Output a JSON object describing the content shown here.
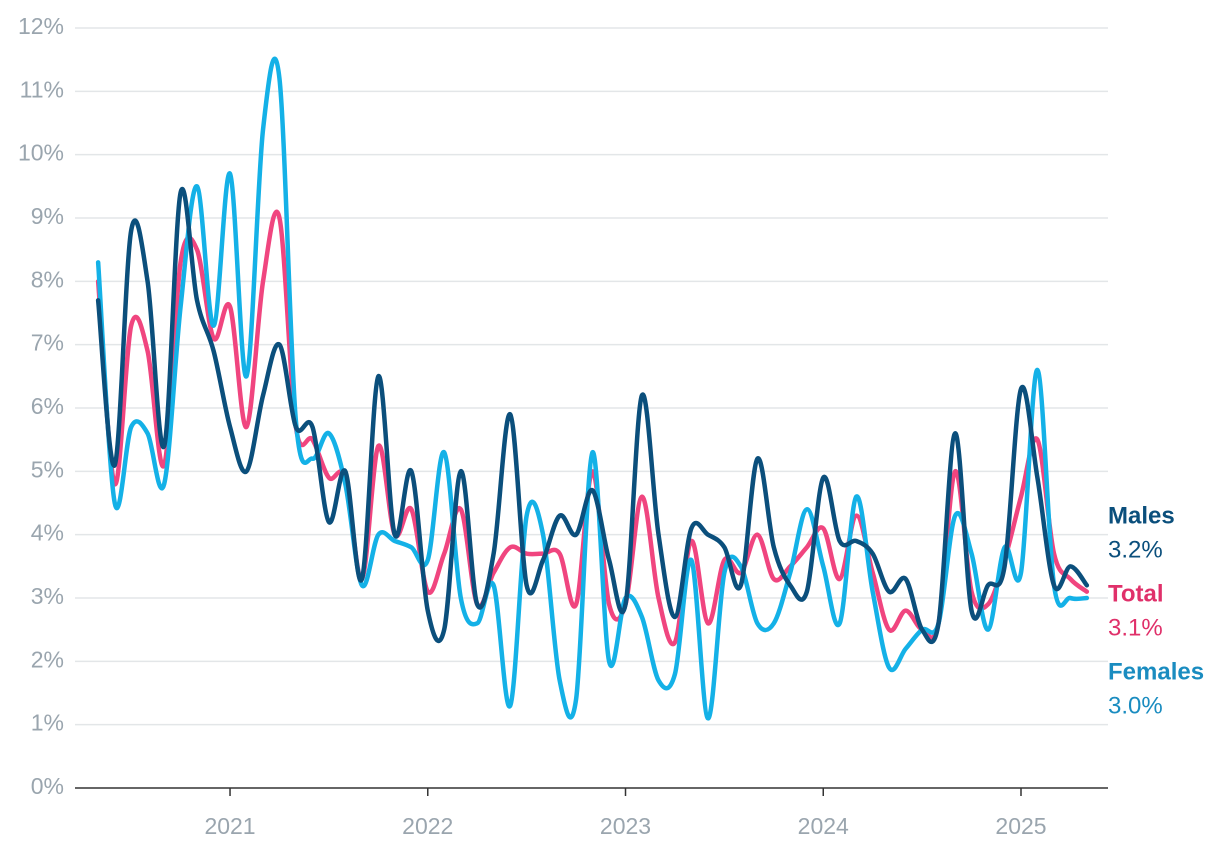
{
  "chart_data": {
    "type": "line",
    "x": [
      2020.333,
      2020.417,
      2020.5,
      2020.583,
      2020.667,
      2020.75,
      2020.833,
      2020.917,
      2021,
      2021.083,
      2021.167,
      2021.25,
      2021.333,
      2021.417,
      2021.5,
      2021.583,
      2021.667,
      2021.75,
      2021.833,
      2021.917,
      2022,
      2022.083,
      2022.167,
      2022.25,
      2022.333,
      2022.417,
      2022.5,
      2022.583,
      2022.667,
      2022.75,
      2022.833,
      2022.917,
      2023,
      2023.083,
      2023.167,
      2023.25,
      2023.333,
      2023.417,
      2023.5,
      2023.583,
      2023.667,
      2023.75,
      2023.833,
      2023.917,
      2024,
      2024.083,
      2024.167,
      2024.25,
      2024.333,
      2024.417,
      2024.5,
      2024.583,
      2024.667,
      2024.75,
      2024.833,
      2024.917,
      2025,
      2025.083,
      2025.167,
      2025.25,
      2025.333
    ],
    "series": [
      {
        "name": "Total",
        "color": "#f0457f",
        "label_color": "#e0306a",
        "end_label": "3.1%",
        "values": [
          8.0,
          4.8,
          7.3,
          6.9,
          5.1,
          8.3,
          8.5,
          7.1,
          7.6,
          5.7,
          8.0,
          9.0,
          5.7,
          5.5,
          4.9,
          4.9,
          3.3,
          5.4,
          4.0,
          4.4,
          3.1,
          3.7,
          4.4,
          2.9,
          3.4,
          3.8,
          3.7,
          3.7,
          3.7,
          2.9,
          5.0,
          2.9,
          2.9,
          4.6,
          3.0,
          2.3,
          3.9,
          2.6,
          3.6,
          3.4,
          4.0,
          3.3,
          3.5,
          3.8,
          4.1,
          3.3,
          4.3,
          3.4,
          2.5,
          2.8,
          2.5,
          2.6,
          5.0,
          3.1,
          2.9,
          3.6,
          4.6,
          5.5,
          3.7,
          3.3,
          3.1
        ]
      },
      {
        "name": "Females",
        "color": "#14b1e7",
        "label_color": "#1a8cc0",
        "end_label": "3.0%",
        "values": [
          8.3,
          4.5,
          5.7,
          5.6,
          4.8,
          7.6,
          9.5,
          7.3,
          9.7,
          6.5,
          10.4,
          11.2,
          5.8,
          5.2,
          5.6,
          4.8,
          3.2,
          4.0,
          3.9,
          3.8,
          3.6,
          5.3,
          3.0,
          2.6,
          3.2,
          1.3,
          4.3,
          4.0,
          1.7,
          1.4,
          5.3,
          2.0,
          3.0,
          2.7,
          1.7,
          1.8,
          3.6,
          1.1,
          3.4,
          3.5,
          2.6,
          2.6,
          3.4,
          4.4,
          3.5,
          2.6,
          4.6,
          3.1,
          1.9,
          2.2,
          2.5,
          2.6,
          4.3,
          3.7,
          2.5,
          3.8,
          3.4,
          6.6,
          3.2,
          3.0,
          3.0
        ]
      },
      {
        "name": "Males",
        "color": "#0b4f7c",
        "label_color": "#0b4f7c",
        "end_label": "3.2%",
        "values": [
          7.7,
          5.1,
          8.8,
          8.0,
          5.4,
          9.4,
          7.7,
          6.9,
          5.7,
          5.0,
          6.2,
          7.0,
          5.7,
          5.7,
          4.2,
          5.0,
          3.3,
          6.5,
          4.0,
          5.0,
          2.8,
          2.5,
          5.0,
          2.9,
          3.7,
          5.9,
          3.2,
          3.6,
          4.3,
          4.0,
          4.7,
          3.6,
          2.9,
          6.2,
          4.0,
          2.7,
          4.1,
          4.0,
          3.8,
          3.2,
          5.2,
          3.8,
          3.2,
          3.1,
          4.9,
          3.9,
          3.9,
          3.7,
          3.1,
          3.3,
          2.5,
          2.6,
          5.6,
          2.8,
          3.2,
          3.5,
          6.3,
          4.9,
          3.2,
          3.5,
          3.2
        ]
      }
    ],
    "label_order": [
      "Males",
      "Total",
      "Females"
    ],
    "xlim": [
      2020.216,
      2025.44
    ],
    "xticks": [
      2021,
      2022,
      2023,
      2024,
      2025
    ],
    "ylim": [
      0,
      12
    ],
    "yticks": [
      {
        "value": 0,
        "label": "0%"
      },
      {
        "value": 1,
        "label": "1%"
      },
      {
        "value": 2,
        "label": "2%"
      },
      {
        "value": 3,
        "label": "3%"
      },
      {
        "value": 4,
        "label": "4%"
      },
      {
        "value": 5,
        "label": "5%"
      },
      {
        "value": 6,
        "label": "6%"
      },
      {
        "value": 7,
        "label": "7%"
      },
      {
        "value": 8,
        "label": "8%"
      },
      {
        "value": 9,
        "label": "9%"
      },
      {
        "value": 10,
        "label": "10%"
      },
      {
        "value": 11,
        "label": "11%"
      },
      {
        "value": 12,
        "label": "12%"
      }
    ],
    "grid": true
  }
}
